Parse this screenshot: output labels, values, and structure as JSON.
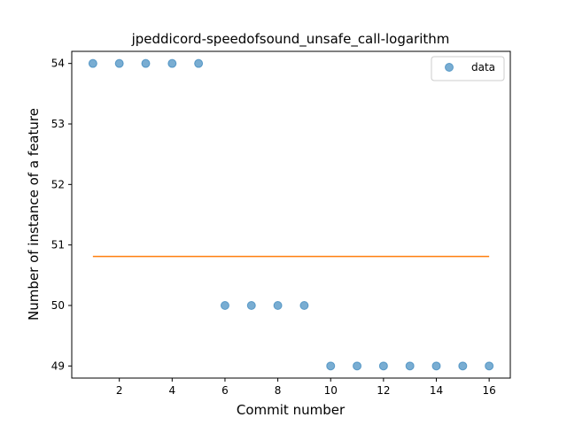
{
  "chart_data": {
    "type": "scatter",
    "title": "jpeddicord-speedofsound_unsafe_call-logarithm",
    "xlabel": "Commit number",
    "ylabel": "Number of instance of a feature",
    "xlim": [
      0.2,
      16.8
    ],
    "ylim": [
      48.8,
      54.2
    ],
    "xticks": [
      2,
      4,
      6,
      8,
      10,
      12,
      14,
      16
    ],
    "yticks": [
      49,
      50,
      51,
      52,
      53,
      54
    ],
    "grid": false,
    "legend_position": "top-right",
    "series": [
      {
        "name": "data",
        "kind": "scatter",
        "color": "#1f77b4",
        "x": [
          1,
          2,
          3,
          4,
          5,
          6,
          7,
          8,
          9,
          10,
          11,
          12,
          13,
          14,
          15,
          16
        ],
        "y": [
          54,
          54,
          54,
          54,
          54,
          50,
          50,
          50,
          50,
          49,
          49,
          49,
          49,
          49,
          49,
          49
        ]
      },
      {
        "kind": "line",
        "color": "#ff7f0e",
        "x": [
          1,
          16
        ],
        "y": [
          50.81,
          50.81
        ]
      }
    ]
  }
}
